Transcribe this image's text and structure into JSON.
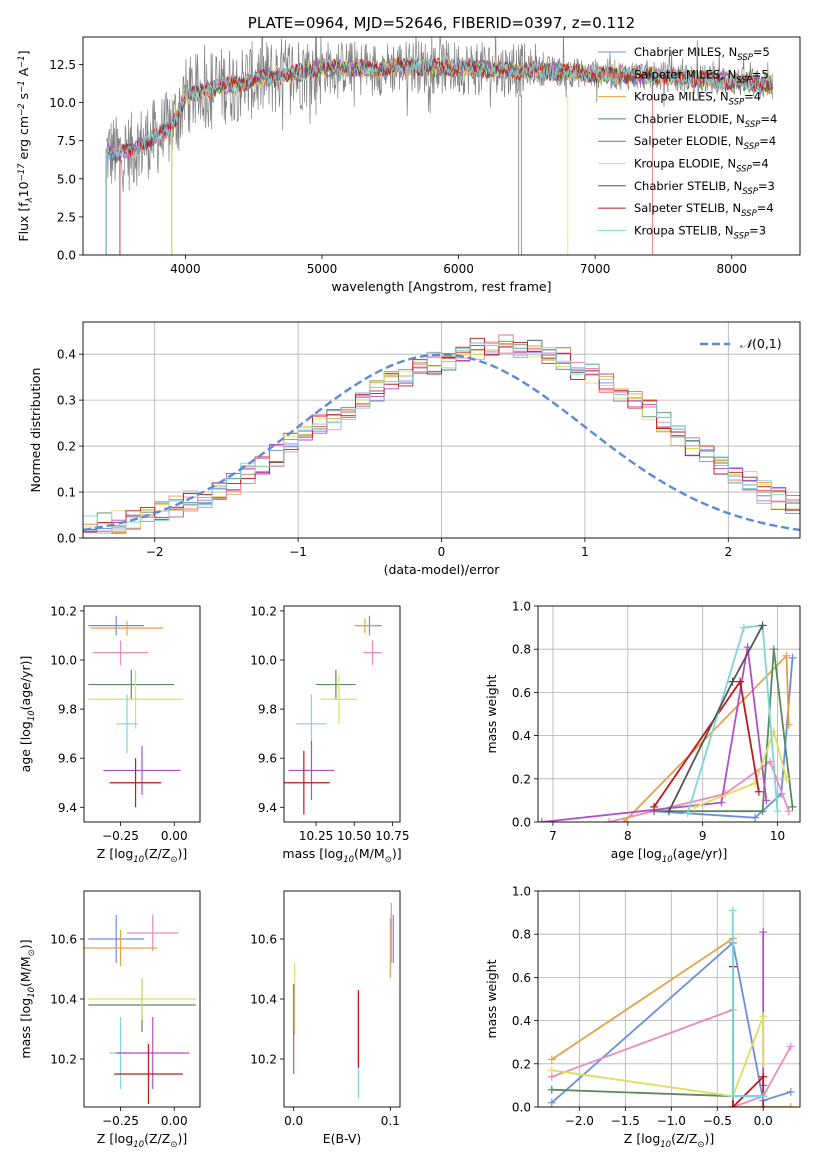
{
  "chart_data": [
    {
      "type": "line",
      "title": "PLATE=0964, MJD=52646, FIBERID=0397, z=0.112",
      "xlabel": "wavelength [Angstrom, rest frame]",
      "ylabel": "Flux [f$_\\lambda$10$^{-17}$ erg cm$^{-2}$ s$^{-1}$ A$^{-1}$]",
      "xlim": [
        3250,
        8500
      ],
      "ylim": [
        0,
        14.3
      ],
      "xticks": [
        4000,
        5000,
        6000,
        7000,
        8000
      ],
      "yticks": [
        0.0,
        2.5,
        5.0,
        7.5,
        10.0,
        12.5
      ],
      "xtick_labels": [
        "4000",
        "5000",
        "6000",
        "7000",
        "8000"
      ],
      "ytick_labels": [
        "0.0",
        "2.5",
        "5.0",
        "7.5",
        "10.0",
        "12.5"
      ],
      "legend_position": "upper right",
      "series": [
        {
          "name": "Chabrier MILES, N$_{SSP}$=5",
          "color": "#6b8fde"
        },
        {
          "name": "Salpeter MILES, N$_{SSP}$=5",
          "color": "#e8736c"
        },
        {
          "name": "Kroupa MILES, N$_{SSP}$=4",
          "color": "#e5a14a"
        },
        {
          "name": "Chabrier ELODIE, N$_{SSP}$=4",
          "color": "#5a8a5e"
        },
        {
          "name": "Salpeter ELODIE, N$_{SSP}$=4",
          "color": "#b24fc8"
        },
        {
          "name": "Kroupa ELODIE, N$_{SSP}$=4",
          "color": "#dbe05a"
        },
        {
          "name": "Chabrier STELIB, N$_{SSP}$=3",
          "color": "#555555"
        },
        {
          "name": "Salpeter STELIB, N$_{SSP}$=4",
          "color": "#c0181e"
        },
        {
          "name": "Kroupa STELIB, N$_{SSP}$=3",
          "color": "#7fd4dc"
        }
      ],
      "observed_spectrum": {
        "color": "#808080"
      },
      "continuum_x": [
        3420,
        3500,
        3600,
        3700,
        3800,
        3900,
        4000,
        4200,
        4400,
        4600,
        4800,
        5000,
        5200,
        5400,
        5600,
        5800,
        6000,
        6200,
        6400,
        6600,
        6800,
        7000,
        7200,
        7400,
        7600,
        7800,
        8000,
        8200,
        8300
      ],
      "continuum_y": [
        6.8,
        6.6,
        6.8,
        7.4,
        7.8,
        8.4,
        10.4,
        11.0,
        11.3,
        11.6,
        11.9,
        12.3,
        12.3,
        12.2,
        12.4,
        12.3,
        12.3,
        12.2,
        12.1,
        12.1,
        12.0,
        11.9,
        11.8,
        11.8,
        11.6,
        11.5,
        11.4,
        11.2,
        11.1
      ]
    },
    {
      "type": "step",
      "xlabel": "(data-model)/error",
      "ylabel": "Normed distribution",
      "xlim": [
        -2.5,
        2.5
      ],
      "ylim": [
        0,
        0.47
      ],
      "xticks": [
        -2,
        -1,
        0,
        1,
        2
      ],
      "yticks": [
        0.0,
        0.1,
        0.2,
        0.3,
        0.4
      ],
      "xtick_labels": [
        "−2",
        "−1",
        "0",
        "1",
        "2"
      ],
      "ytick_labels": [
        "0.0",
        "0.1",
        "0.2",
        "0.3",
        "0.4"
      ],
      "grid": true,
      "legend_position": "upper right",
      "reference": {
        "name": "$\\mathcal{N}(0,1)$",
        "color": "#5b8bd6",
        "style": "dashed"
      },
      "bin_width": 0.1,
      "bin_start": -2.5,
      "base_histogram": [
        0.025,
        0.03,
        0.035,
        0.04,
        0.05,
        0.06,
        0.07,
        0.08,
        0.09,
        0.1,
        0.12,
        0.14,
        0.16,
        0.18,
        0.205,
        0.23,
        0.25,
        0.26,
        0.28,
        0.3,
        0.32,
        0.34,
        0.355,
        0.37,
        0.38,
        0.39,
        0.4,
        0.41,
        0.41,
        0.42,
        0.41,
        0.41,
        0.4,
        0.39,
        0.37,
        0.355,
        0.34,
        0.32,
        0.3,
        0.28,
        0.25,
        0.22,
        0.2,
        0.18,
        0.16,
        0.14,
        0.12,
        0.1,
        0.085,
        0.07,
        0.06
      ]
    },
    {
      "type": "errorbar",
      "xlabel": "Z [log$_{10}$(Z/Z$_\\odot$)]",
      "ylabel": "age  [log$_{10}$(age/yr)]",
      "xlim": [
        -0.42,
        0.12
      ],
      "ylim": [
        9.34,
        10.22
      ],
      "xticks": [
        -0.25,
        0.0
      ],
      "xtick_labels": [
        "−0.25",
        "0.00"
      ],
      "yticks": [
        9.4,
        9.6,
        9.8,
        10.0,
        10.2
      ],
      "ytick_labels": [
        "9.4",
        "9.6",
        "9.8",
        "10.0",
        "10.2"
      ],
      "points": [
        {
          "x": -0.27,
          "y": 10.14,
          "xerr": 0.13,
          "yerr": 0.04,
          "color": "#6b8fde"
        },
        {
          "x": -0.22,
          "y": 10.13,
          "xerr": 0.17,
          "yerr": 0.03,
          "color": "#e5a14a"
        },
        {
          "x": -0.25,
          "y": 10.03,
          "xerr": 0.13,
          "yerr": 0.05,
          "color": "#e88bbd"
        },
        {
          "x": -0.2,
          "y": 9.9,
          "xerr": 0.2,
          "yerr": 0.06,
          "color": "#5a8a5e"
        },
        {
          "x": -0.18,
          "y": 9.84,
          "xerr": 0.22,
          "yerr": 0.12,
          "color": "#dbe05a"
        },
        {
          "x": -0.22,
          "y": 9.74,
          "xerr": 0.05,
          "yerr": 0.12,
          "color": "#7fd4dc"
        },
        {
          "x": -0.15,
          "y": 9.55,
          "xerr": 0.18,
          "yerr": 0.1,
          "color": "#b24fc8"
        },
        {
          "x": -0.18,
          "y": 9.5,
          "xerr": 0.12,
          "yerr": 0.1,
          "color": "#c0181e"
        }
      ]
    },
    {
      "type": "errorbar",
      "xlabel": "mass [log$_{10}$(M/M$_\\odot$)]",
      "ylabel": "",
      "xlim": [
        10.04,
        10.8
      ],
      "ylim": [
        9.34,
        10.22
      ],
      "xticks": [
        10.25,
        10.5,
        10.75
      ],
      "xtick_labels": [
        "10.25",
        "10.50",
        "10.75"
      ],
      "yticks": [
        9.4,
        9.6,
        9.8,
        10.0,
        10.2
      ],
      "ytick_labels": [
        "9.4",
        "9.6",
        "9.8",
        "10.0",
        "10.2"
      ],
      "points": [
        {
          "x": 10.6,
          "y": 10.14,
          "xerr": 0.08,
          "yerr": 0.04,
          "color": "#6b8fde"
        },
        {
          "x": 10.57,
          "y": 10.14,
          "xerr": 0.07,
          "yerr": 0.03,
          "color": "#e5a14a"
        },
        {
          "x": 10.62,
          "y": 10.03,
          "xerr": 0.06,
          "yerr": 0.05,
          "color": "#e88bbd"
        },
        {
          "x": 10.38,
          "y": 9.9,
          "xerr": 0.13,
          "yerr": 0.06,
          "color": "#5a8a5e"
        },
        {
          "x": 10.4,
          "y": 9.84,
          "xerr": 0.12,
          "yerr": 0.1,
          "color": "#dbe05a"
        },
        {
          "x": 10.22,
          "y": 9.74,
          "xerr": 0.1,
          "yerr": 0.12,
          "color": "#7fd4dc"
        },
        {
          "x": 10.22,
          "y": 9.55,
          "xerr": 0.15,
          "yerr": 0.12,
          "color": "#b24fc8"
        },
        {
          "x": 10.17,
          "y": 9.5,
          "xerr": 0.17,
          "yerr": 0.13,
          "color": "#c0181e"
        }
      ]
    },
    {
      "type": "line",
      "xlabel": "age  [log$_{10}$(age/yr)]",
      "ylabel": "mass weight",
      "xlim": [
        6.8,
        10.3
      ],
      "ylim": [
        0,
        1.0
      ],
      "xticks": [
        7,
        8,
        9,
        10
      ],
      "xtick_labels": [
        "7",
        "8",
        "9",
        "10"
      ],
      "yticks": [
        0.0,
        0.2,
        0.4,
        0.6,
        0.8,
        1.0
      ],
      "ytick_labels": [
        "0.0",
        "0.2",
        "0.4",
        "0.6",
        "0.8",
        "1.0"
      ],
      "grid": true,
      "series": [
        {
          "color": "#6b8fde",
          "x": [
            8.35,
            9.7,
            10.05,
            10.2
          ],
          "y": [
            0.05,
            0.02,
            0.13,
            0.76
          ]
        },
        {
          "color": "#e88bbd",
          "x": [
            7.75,
            9.3,
            9.9,
            10.15
          ],
          "y": [
            0.0,
            0.13,
            0.28,
            0.05
          ]
        },
        {
          "color": "#e5a14a",
          "x": [
            7.95,
            10.12,
            10.15
          ],
          "y": [
            0.0,
            0.77,
            0.45
          ]
        },
        {
          "color": "#5a8a5e",
          "x": [
            8.35,
            9.8,
            9.95,
            10.2
          ],
          "y": [
            0.05,
            0.05,
            0.8,
            0.07
          ]
        },
        {
          "color": "#b24fc8",
          "x": [
            6.85,
            9.25,
            9.6,
            9.85
          ],
          "y": [
            0.0,
            0.09,
            0.81,
            0.1
          ]
        },
        {
          "color": "#dbe05a",
          "x": [
            8.9,
            9.7,
            9.95,
            10.12
          ],
          "y": [
            0.07,
            0.18,
            0.42,
            0.2
          ]
        },
        {
          "color": "#c0181e",
          "x": [
            8.35,
            9.5,
            9.75
          ],
          "y": [
            0.07,
            0.65,
            0.14
          ]
        },
        {
          "color": "#7fd4dc",
          "x": [
            8.8,
            9.55,
            9.8,
            10.0
          ],
          "y": [
            0.04,
            0.9,
            0.91,
            0.05
          ]
        },
        {
          "color": "#555555",
          "x": [
            8.55,
            9.4,
            9.8
          ],
          "y": [
            0.05,
            0.65,
            0.91
          ]
        }
      ]
    },
    {
      "type": "errorbar",
      "xlabel": "Z [log$_{10}$(Z/Z$_\\odot$)]",
      "ylabel": "mass [log$_{10}$(M/M$_\\odot$)]",
      "xlim": [
        -0.42,
        0.12
      ],
      "ylim": [
        10.04,
        10.76
      ],
      "xticks": [
        -0.25,
        0.0
      ],
      "xtick_labels": [
        "−0.25",
        "0.00"
      ],
      "yticks": [
        10.2,
        10.4,
        10.6
      ],
      "ytick_labels": [
        "10.2",
        "10.4",
        "10.6"
      ],
      "points": [
        {
          "x": -0.27,
          "y": 10.6,
          "xerr": 0.13,
          "yerr": 0.08,
          "color": "#6b8fde"
        },
        {
          "x": -0.25,
          "y": 10.57,
          "xerr": 0.17,
          "yerr": 0.06,
          "color": "#e5a14a"
        },
        {
          "x": -0.1,
          "y": 10.62,
          "xerr": 0.12,
          "yerr": 0.06,
          "color": "#e88bbd"
        },
        {
          "x": -0.15,
          "y": 10.38,
          "xerr": 0.25,
          "yerr": 0.09,
          "color": "#5a8a5e"
        },
        {
          "x": -0.15,
          "y": 10.4,
          "xerr": 0.25,
          "yerr": 0.07,
          "color": "#dbe05a"
        },
        {
          "x": -0.25,
          "y": 10.22,
          "xerr": 0.05,
          "yerr": 0.12,
          "color": "#7fd4dc"
        },
        {
          "x": -0.1,
          "y": 10.22,
          "xerr": 0.17,
          "yerr": 0.12,
          "color": "#b24fc8"
        },
        {
          "x": -0.12,
          "y": 10.15,
          "xerr": 0.16,
          "yerr": 0.1,
          "color": "#c0181e"
        }
      ]
    },
    {
      "type": "errorbar",
      "xlabel": "E(B-V)",
      "ylabel": "",
      "xlim": [
        -0.01,
        0.11
      ],
      "ylim": [
        10.04,
        10.76
      ],
      "xticks": [
        0.0,
        0.1
      ],
      "xtick_labels": [
        "0.0",
        "0.1"
      ],
      "yticks": [
        10.2,
        10.4,
        10.6
      ],
      "ytick_labels": [
        "10.2",
        "10.4",
        "10.6"
      ],
      "points": [
        {
          "x": 0.103,
          "y": 10.6,
          "xerr": 0,
          "yerr": 0.08,
          "color": "#6b8fde"
        },
        {
          "x": 0.1,
          "y": 10.57,
          "xerr": 0,
          "yerr": 0.1,
          "color": "#e5a14a"
        },
        {
          "x": 0.101,
          "y": 10.62,
          "xerr": 0,
          "yerr": 0.1,
          "color": "#e88bbd"
        },
        {
          "x": 0.067,
          "y": 10.3,
          "xerr": 0,
          "yerr": 0.12,
          "color": "#5a8a5e"
        },
        {
          "x": 0.001,
          "y": 10.4,
          "xerr": 0,
          "yerr": 0.12,
          "color": "#dbe05a"
        },
        {
          "x": 0.067,
          "y": 10.22,
          "xerr": 0,
          "yerr": 0.15,
          "color": "#7fd4dc"
        },
        {
          "x": 0.0,
          "y": 10.3,
          "xerr": 0,
          "yerr": 0.15,
          "color": "#b24fc8"
        },
        {
          "x": 0.067,
          "y": 10.3,
          "xerr": 0,
          "yerr": 0.13,
          "color": "#c0181e"
        }
      ]
    },
    {
      "type": "line",
      "xlabel": "Z [log$_{10}$(Z/Z$_\\odot$)]",
      "ylabel": "mass weight",
      "xlim": [
        -2.45,
        0.4
      ],
      "ylim": [
        0,
        1.0
      ],
      "xticks": [
        -2.0,
        -1.5,
        -1.0,
        -0.5,
        0.0
      ],
      "xtick_labels": [
        "−2.0",
        "−1.5",
        "−1.0",
        "−0.5",
        "0.0"
      ],
      "yticks": [
        0.0,
        0.2,
        0.4,
        0.6,
        0.8,
        1.0
      ],
      "ytick_labels": [
        "0.0",
        "0.2",
        "0.4",
        "0.6",
        "0.8",
        "1.0"
      ],
      "grid": true,
      "series": [
        {
          "color": "#6b8fde",
          "x": [
            -2.3,
            -0.33,
            0.0,
            0.3
          ],
          "y": [
            0.02,
            0.76,
            0.03,
            0.07
          ]
        },
        {
          "color": "#e5a14a",
          "x": [
            -2.3,
            -0.33,
            -0.33,
            0.3
          ],
          "y": [
            0.22,
            0.78,
            0.0,
            0.0
          ]
        },
        {
          "color": "#e88bbd",
          "x": [
            -2.3,
            -0.33,
            -0.33,
            0.0,
            0.3
          ],
          "y": [
            0.14,
            0.45,
            0.0,
            0.05,
            0.28
          ]
        },
        {
          "color": "#5a8a5e",
          "x": [
            -2.3,
            -0.33,
            0.0
          ],
          "y": [
            0.08,
            0.05,
            0.05
          ]
        },
        {
          "color": "#b24fc8",
          "x": [
            0.0,
            0.0
          ],
          "y": [
            0.81,
            0.1
          ]
        },
        {
          "color": "#dbe05a",
          "x": [
            -2.3,
            -0.33,
            0.0,
            0.0
          ],
          "y": [
            0.17,
            0.05,
            0.42,
            0.2
          ]
        },
        {
          "color": "#c0181e",
          "x": [
            -0.33,
            -0.33,
            0.0,
            0.0
          ],
          "y": [
            0.65,
            0.0,
            0.14,
            0.0
          ]
        },
        {
          "color": "#7fd4dc",
          "x": [
            -0.33,
            -0.33,
            0.0
          ],
          "y": [
            0.91,
            0.05,
            0.05
          ]
        }
      ]
    }
  ]
}
